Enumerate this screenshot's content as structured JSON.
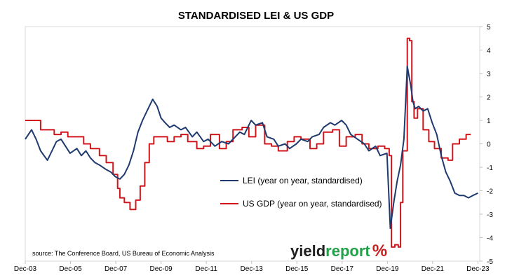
{
  "chart_data": {
    "type": "line",
    "title": "STANDARDISED LEI & US GDP",
    "source": "source: The Conference Board, US Bureau of Economic Analysis",
    "logo": {
      "part1": "yield",
      "part2": "report",
      "part3": "%"
    },
    "xlabel": "",
    "ylabel": "",
    "ylim": [
      -5,
      5
    ],
    "yticks": [
      5,
      4,
      3,
      2,
      1,
      0,
      -1,
      -2,
      -3,
      -4,
      -5
    ],
    "xlim": [
      2003.92,
      2024.0
    ],
    "xticks": [
      {
        "label": "Dec-03",
        "value": 2003.92
      },
      {
        "label": "Dec-05",
        "value": 2005.92
      },
      {
        "label": "Dec-07",
        "value": 2007.92
      },
      {
        "label": "Dec-09",
        "value": 2009.92
      },
      {
        "label": "Dec-11",
        "value": 2011.92
      },
      {
        "label": "Dec-13",
        "value": 2013.92
      },
      {
        "label": "Dec-15",
        "value": 2015.92
      },
      {
        "label": "Dec-17",
        "value": 2017.92
      },
      {
        "label": "Dec-19",
        "value": 2019.92
      },
      {
        "label": "Dec-21",
        "value": 2021.92
      },
      {
        "label": "Dec-23",
        "value": 2023.92
      }
    ],
    "grid": false,
    "legend_position": "center",
    "series": [
      {
        "name": "LEI (year on year, standardised)",
        "color": "#1f3a6e",
        "x": [
          2003.92,
          2004.2,
          2004.4,
          2004.6,
          2004.9,
          2005.1,
          2005.3,
          2005.5,
          2005.7,
          2005.9,
          2006.2,
          2006.4,
          2006.6,
          2006.8,
          2007.0,
          2007.2,
          2007.5,
          2007.7,
          2007.9,
          2008.1,
          2008.3,
          2008.5,
          2008.7,
          2008.9,
          2009.1,
          2009.3,
          2009.55,
          2009.75,
          2009.92,
          2010.1,
          2010.3,
          2010.5,
          2010.8,
          2011.0,
          2011.3,
          2011.5,
          2011.8,
          2012.0,
          2012.3,
          2012.6,
          2012.9,
          2013.1,
          2013.4,
          2013.6,
          2013.9,
          2014.1,
          2014.4,
          2014.6,
          2014.9,
          2015.1,
          2015.4,
          2015.6,
          2015.9,
          2016.1,
          2016.4,
          2016.6,
          2016.9,
          2017.1,
          2017.4,
          2017.6,
          2017.9,
          2018.1,
          2018.3,
          2018.6,
          2018.9,
          2019.1,
          2019.4,
          2019.6,
          2019.9,
          2020.05,
          2020.2,
          2020.35,
          2020.5,
          2020.65,
          2020.8,
          2020.95,
          2021.05,
          2021.15,
          2021.3,
          2021.5,
          2021.7,
          2021.9,
          2022.1,
          2022.3,
          2022.5,
          2022.7,
          2022.9,
          2023.1,
          2023.3,
          2023.5,
          2023.7,
          2023.92
        ],
        "values": [
          0.2,
          0.6,
          0.2,
          -0.3,
          -0.7,
          -0.3,
          0.1,
          0.2,
          -0.1,
          -0.4,
          -0.2,
          -0.5,
          -0.3,
          -0.6,
          -0.8,
          -0.9,
          -1.1,
          -1.2,
          -1.4,
          -1.5,
          -1.3,
          -0.9,
          -0.3,
          0.5,
          1.0,
          1.4,
          1.9,
          1.6,
          1.1,
          0.9,
          0.7,
          0.8,
          0.6,
          0.7,
          0.3,
          0.5,
          0.1,
          0.2,
          -0.1,
          0.1,
          0.0,
          0.2,
          0.5,
          0.4,
          1.0,
          0.8,
          0.9,
          0.3,
          0.2,
          -0.1,
          0.0,
          -0.2,
          0.0,
          0.2,
          0.1,
          0.3,
          0.4,
          0.7,
          0.9,
          0.8,
          1.0,
          0.8,
          0.4,
          0.2,
          0.0,
          -0.3,
          -0.1,
          -0.5,
          -0.4,
          -3.6,
          -2.5,
          -1.6,
          -0.9,
          0.2,
          3.3,
          2.5,
          1.8,
          1.5,
          1.6,
          1.4,
          1.5,
          0.9,
          0.4,
          -0.5,
          -1.2,
          -1.6,
          -2.1,
          -2.2,
          -2.2,
          -2.3,
          -2.2,
          -2.1
        ]
      },
      {
        "name": "US GDP (year on year, standardised)",
        "color": "#d0161c",
        "x": [
          2003.92,
          2004.3,
          2004.6,
          2004.8,
          2005.2,
          2005.5,
          2005.8,
          2006.2,
          2006.5,
          2006.8,
          2007.2,
          2007.5,
          2007.8,
          2008.0,
          2008.1,
          2008.3,
          2008.55,
          2008.8,
          2009.0,
          2009.2,
          2009.4,
          2009.6,
          2009.9,
          2010.2,
          2010.5,
          2010.8,
          2011.1,
          2011.5,
          2011.8,
          2012.1,
          2012.5,
          2012.8,
          2013.1,
          2013.5,
          2013.8,
          2014.1,
          2014.5,
          2014.8,
          2015.1,
          2015.5,
          2015.8,
          2016.1,
          2016.5,
          2016.8,
          2017.1,
          2017.5,
          2017.8,
          2018.1,
          2018.5,
          2018.8,
          2019.1,
          2019.5,
          2019.8,
          2020.0,
          2020.1,
          2020.25,
          2020.4,
          2020.5,
          2020.6,
          2020.8,
          2020.9,
          2021.0,
          2021.1,
          2021.25,
          2021.5,
          2021.75,
          2022.0,
          2022.3,
          2022.6,
          2022.8,
          2023.1,
          2023.4,
          2023.6
        ],
        "values": [
          1.0,
          1.0,
          0.6,
          0.6,
          0.4,
          0.5,
          0.3,
          0.3,
          0.0,
          -0.2,
          -0.5,
          -0.8,
          -1.3,
          -1.9,
          -2.3,
          -2.5,
          -2.8,
          -2.4,
          -1.8,
          -0.8,
          0.0,
          0.3,
          0.3,
          0.1,
          0.3,
          0.4,
          0.1,
          -0.2,
          -0.1,
          0.4,
          -0.2,
          0.1,
          0.6,
          0.7,
          0.3,
          0.8,
          0.0,
          -0.1,
          -0.3,
          0.1,
          0.3,
          0.2,
          -0.2,
          0.0,
          0.5,
          0.6,
          -0.1,
          0.3,
          0.4,
          0.0,
          -0.2,
          -0.1,
          -0.2,
          -0.5,
          -4.4,
          -4.3,
          -4.4,
          -2.5,
          -0.3,
          4.5,
          4.4,
          1.8,
          1.1,
          1.5,
          0.6,
          0.1,
          -0.2,
          -0.6,
          -0.7,
          0.0,
          0.2,
          0.4,
          0.4
        ]
      }
    ]
  }
}
